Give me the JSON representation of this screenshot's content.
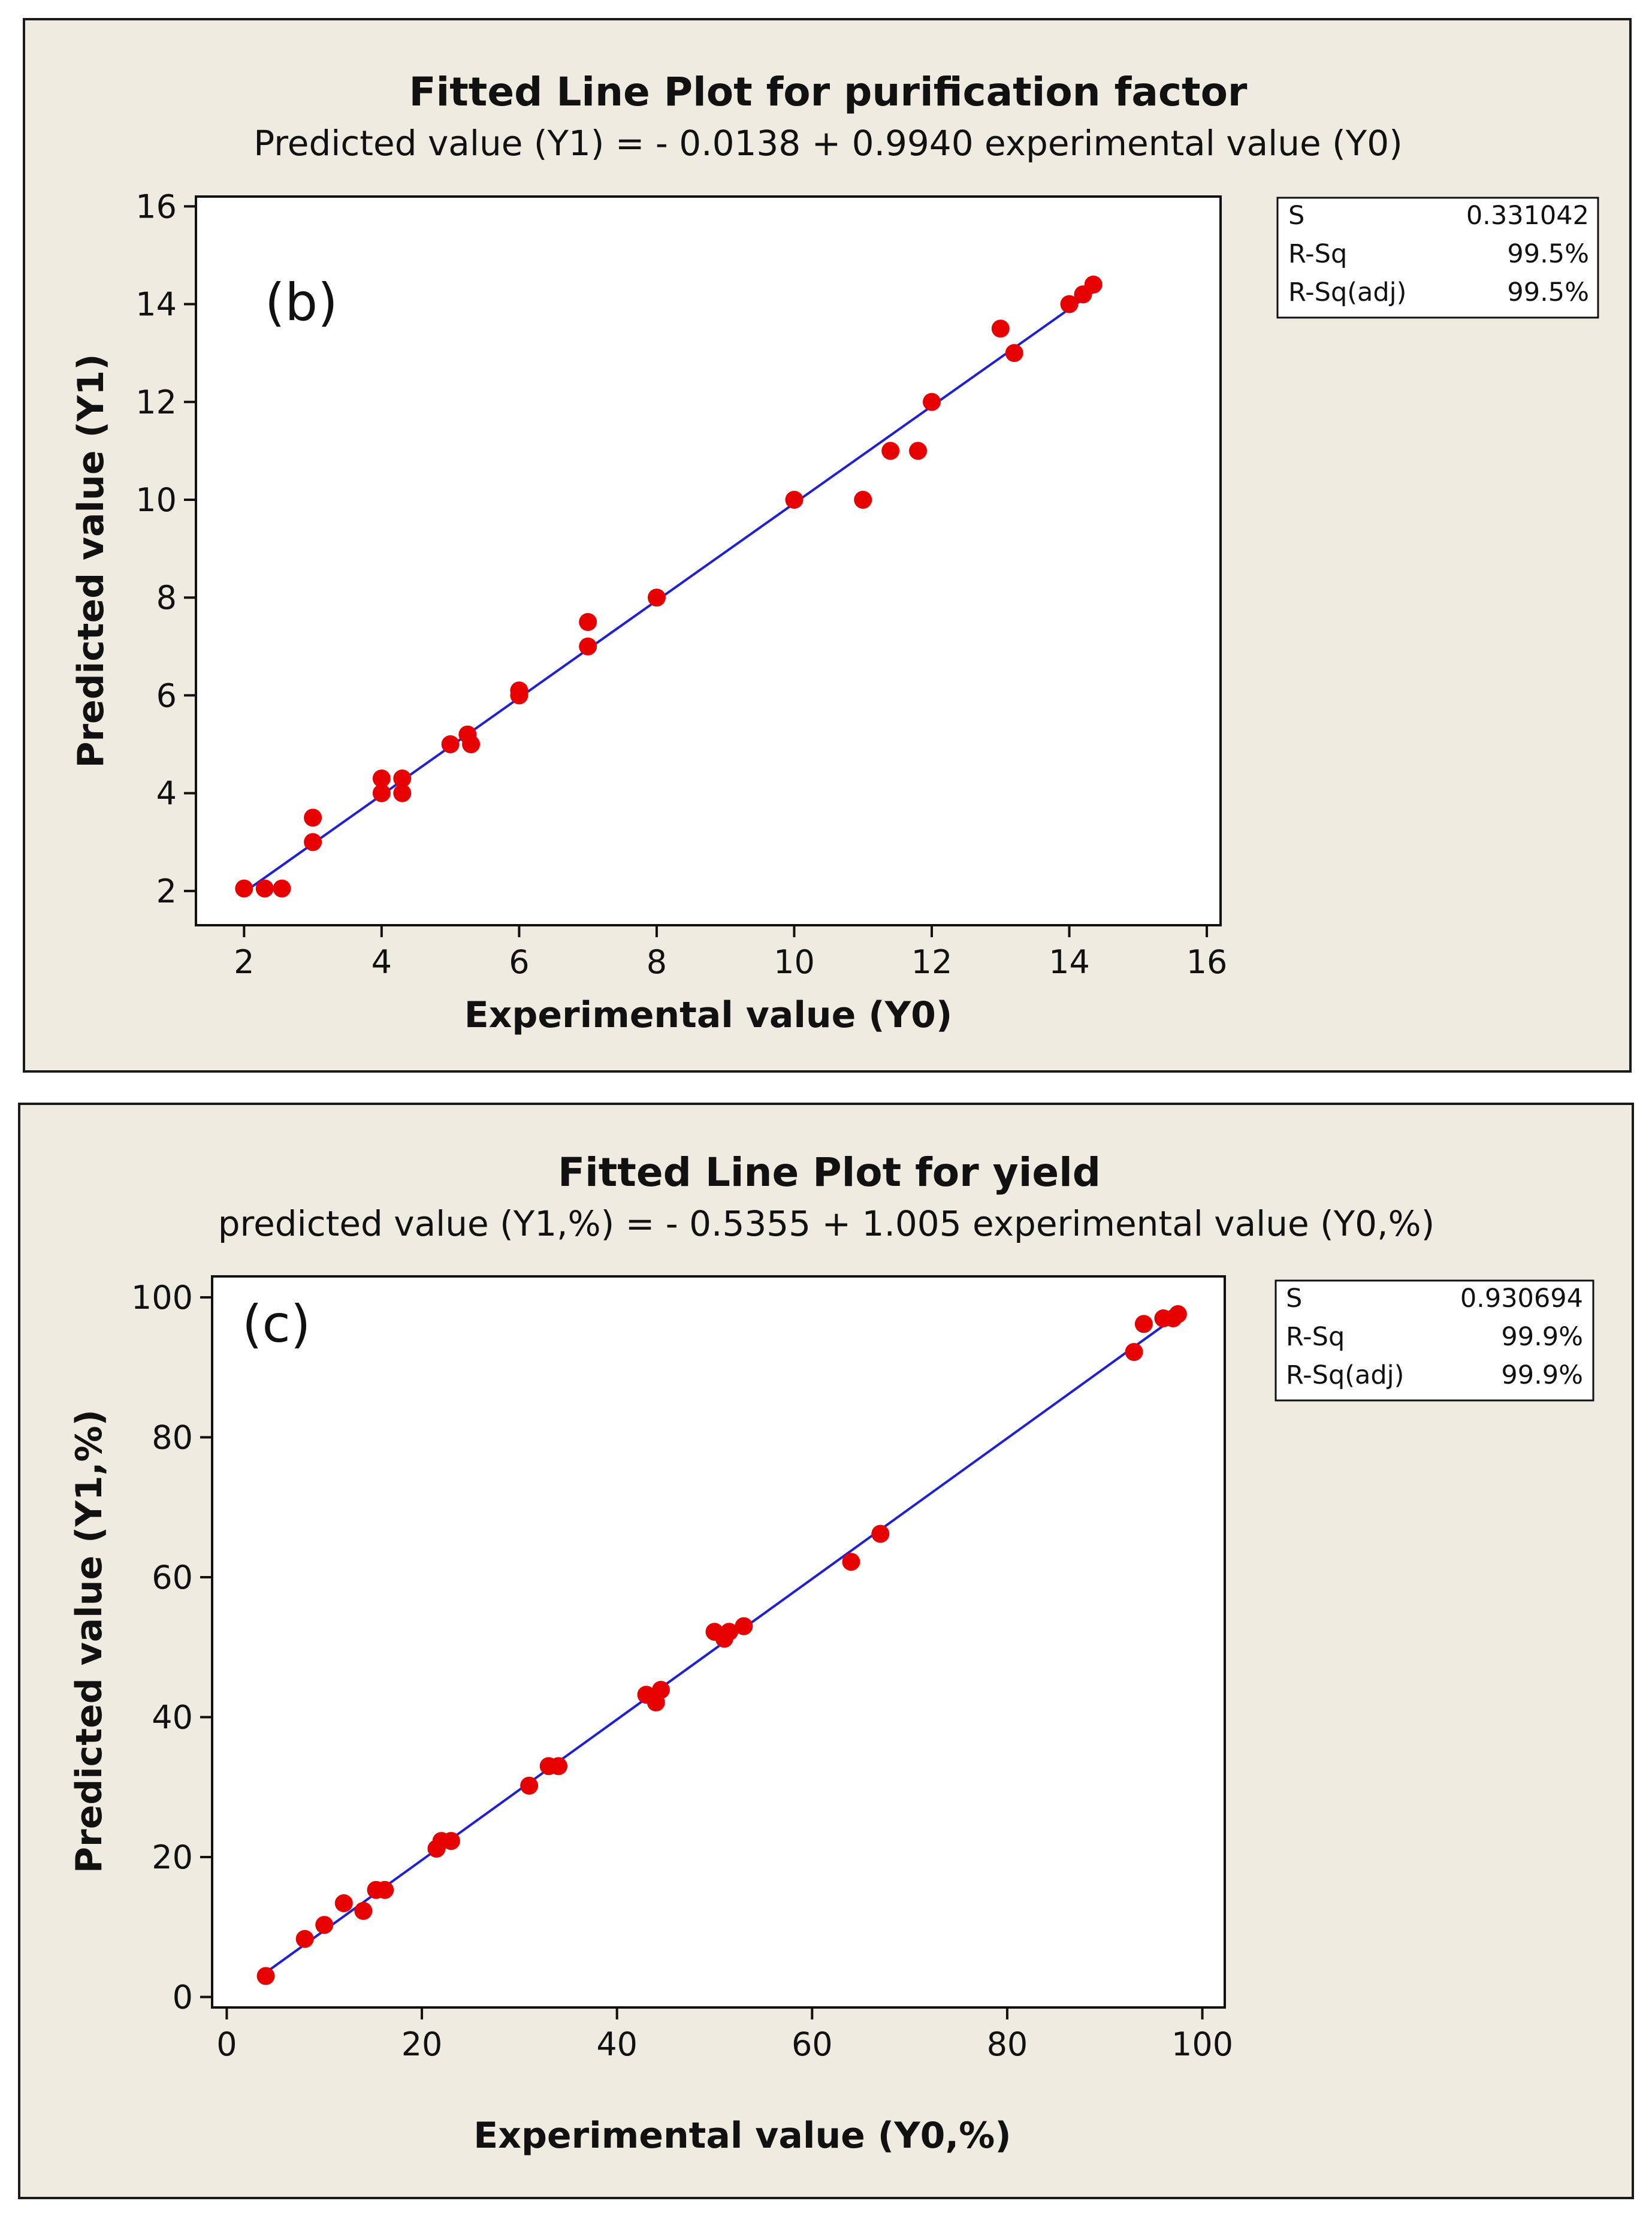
{
  "chart_data": [
    {
      "type": "scatter",
      "panel_label": "(b)",
      "title": "Fitted Line Plot for purification factor",
      "subtitle": "Predicted value (Y1) =  - 0.0138 + 0.9940 experimental value (Y0)",
      "xlabel": "Experimental value (Y0)",
      "ylabel": "Predicted value (Y1)",
      "xlim": [
        1.3,
        16.2
      ],
      "ylim": [
        1.3,
        16.2
      ],
      "xticks": [
        2,
        4,
        6,
        8,
        10,
        12,
        14,
        16
      ],
      "yticks": [
        2,
        4,
        6,
        8,
        10,
        12,
        14,
        16
      ],
      "fit": {
        "intercept": -0.0138,
        "slope": 0.994,
        "x_range": [
          2,
          14.4
        ],
        "color": "#1f1fd6"
      },
      "points": {
        "color": "#e60000",
        "x": [
          2.0,
          2.3,
          2.55,
          3.0,
          3.0,
          4.0,
          4.0,
          4.3,
          4.3,
          5.0,
          5.25,
          5.3,
          6.0,
          6.0,
          7.0,
          7.0,
          8.0,
          10.0,
          11.0,
          11.4,
          11.8,
          12.0,
          13.0,
          13.2,
          14.0,
          14.2,
          14.35
        ],
        "y": [
          2.05,
          2.05,
          2.05,
          3.0,
          3.5,
          4.0,
          4.3,
          4.0,
          4.3,
          5.0,
          5.2,
          5.0,
          6.0,
          6.1,
          7.0,
          7.5,
          8.0,
          10.0,
          10.0,
          11.0,
          11.0,
          12.0,
          13.5,
          13.0,
          14.0,
          14.2,
          14.4
        ]
      },
      "stats": [
        {
          "label": "S",
          "value": "0.331042"
        },
        {
          "label": "R-Sq",
          "value": "99.5%"
        },
        {
          "label": "R-Sq(adj)",
          "value": "99.5%"
        }
      ]
    },
    {
      "type": "scatter",
      "panel_label": "(c)",
      "title": "Fitted Line Plot for yield",
      "subtitle": "predicted value (Y1,%) =  - 0.5355 + 1.005 experimental value (Y0,%)",
      "xlabel": "Experimental value (Y0,%)",
      "ylabel": "Predicted value (Y1,%)",
      "xlim": [
        -1.5,
        102.3
      ],
      "ylim": [
        -1.5,
        103
      ],
      "xticks": [
        0,
        20,
        40,
        60,
        80,
        100
      ],
      "yticks": [
        0,
        20,
        40,
        60,
        80,
        100
      ],
      "fit": {
        "intercept": -0.5355,
        "slope": 1.005,
        "x_range": [
          4,
          97.5
        ],
        "color": "#1f1fd6"
      },
      "points": {
        "color": "#e60000",
        "x": [
          4,
          8,
          10,
          12,
          14,
          15.3,
          16.2,
          21.5,
          22,
          23,
          31,
          33,
          34,
          43,
          44,
          44.5,
          50,
          51,
          51.5,
          53,
          64,
          67,
          93,
          94,
          96,
          97,
          97.5
        ],
        "y": [
          3,
          8.3,
          10.3,
          13.4,
          12.3,
          15.3,
          15.3,
          21.2,
          22.3,
          22.3,
          30.2,
          33,
          33,
          43.2,
          42.1,
          43.9,
          52.2,
          51.2,
          52.2,
          53,
          62.2,
          66.2,
          92.2,
          96.2,
          97,
          97,
          97.6
        ]
      },
      "stats": [
        {
          "label": "S",
          "value": "0.930694"
        },
        {
          "label": "R-Sq",
          "value": "99.9%"
        },
        {
          "label": "R-Sq(adj)",
          "value": "99.9%"
        }
      ]
    }
  ]
}
